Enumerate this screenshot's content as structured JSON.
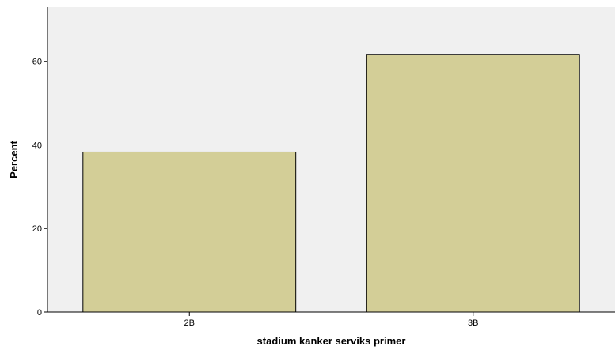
{
  "chart_data": {
    "type": "bar",
    "title": "",
    "xlabel": "stadium kanker serviks primer",
    "ylabel": "Percent",
    "categories": [
      "2B",
      "3B"
    ],
    "values": [
      38.3,
      61.7
    ],
    "ylim": [
      0,
      73
    ],
    "yticks": [
      0,
      20,
      40,
      60
    ],
    "grid": false,
    "legend": "none",
    "colors": {
      "plot_background": "#f0f0f0",
      "bar_fill": "#d3ce97",
      "bar_stroke": "#000000",
      "axis": "#000000"
    }
  }
}
